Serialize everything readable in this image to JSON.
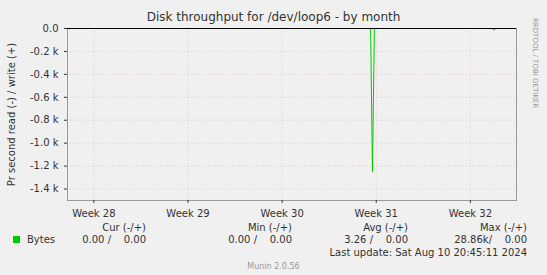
{
  "chart_data": {
    "type": "line",
    "title": "Disk throughput for /dev/loop6 - by month",
    "y_label": "Pr second read (-) / write (+)",
    "x": [
      27.72,
      30.94,
      30.96,
      30.98,
      32.23,
      32.25,
      32.27,
      32.49
    ],
    "series": [
      {
        "name": "Bytes",
        "color": "#00cc00",
        "values": [
          0,
          0,
          -1250,
          0,
          0,
          -15,
          0,
          0
        ]
      }
    ],
    "xlim": [
      27.72,
      32.49
    ],
    "xticks": [
      {
        "value": 28,
        "label": "Week 28"
      },
      {
        "value": 29,
        "label": "Week 29"
      },
      {
        "value": 30,
        "label": "Week 30"
      },
      {
        "value": 31,
        "label": "Week 31"
      },
      {
        "value": 32,
        "label": "Week 32"
      }
    ],
    "ylim": [
      -1500,
      0
    ],
    "yticks": [
      {
        "value": 0,
        "label": "0.0"
      },
      {
        "value": -200,
        "label": "-0.2 k"
      },
      {
        "value": -400,
        "label": "-0.4 k"
      },
      {
        "value": -600,
        "label": "-0.6 k"
      },
      {
        "value": -800,
        "label": "-0.8 k"
      },
      {
        "value": -1000,
        "label": "-1.0 k"
      },
      {
        "value": -1200,
        "label": "-1.2 k"
      },
      {
        "value": -1400,
        "label": "-1.4 k"
      }
    ],
    "grid": true,
    "stats": {
      "columns": [
        "Cur (-/+)",
        "Min (-/+)",
        "Avg (-/+)",
        "Max (-/+)"
      ],
      "rows": [
        {
          "name": "Bytes",
          "cells": [
            "0.00 /    0.00",
            "0.00 /    0.00",
            "3.26 /    0.00",
            "28.86k/    0.00"
          ]
        }
      ]
    },
    "footer": "Last update: Sat Aug 10 20:45:11 2024",
    "credit": "Munin 2.0.56",
    "side_text": "RRDTOOL / TOBI OETIKER"
  }
}
